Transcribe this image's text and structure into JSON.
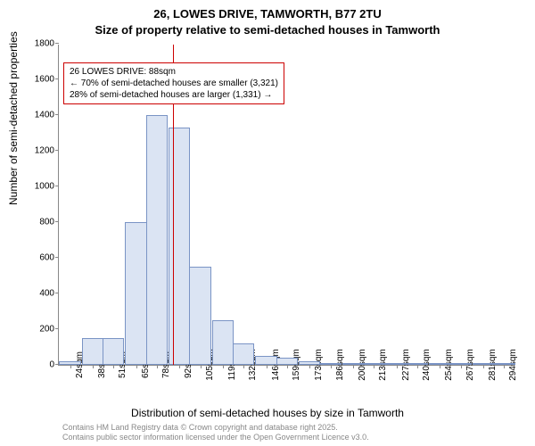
{
  "title_line1": "26, LOWES DRIVE, TAMWORTH, B77 2TU",
  "title_line2": "Size of property relative to semi-detached houses in Tamworth",
  "ylabel": "Number of semi-detached properties",
  "xlabel": "Distribution of semi-detached houses by size in Tamworth",
  "attribution_line1": "Contains HM Land Registry data © Crown copyright and database right 2025.",
  "attribution_line2": "Contains public sector information licensed under the Open Government Licence v3.0.",
  "infobox_line1": "26 LOWES DRIVE: 88sqm",
  "infobox_line2": "← 70% of semi-detached houses are smaller (3,321)",
  "infobox_line3": "28% of semi-detached houses are larger (1,331) →",
  "chart": {
    "type": "histogram",
    "bar_fill": "#dbe4f3",
    "bar_stroke": "#7a94c5",
    "refline_color": "#cc0000",
    "refline_x": 88,
    "infobox_border": "#cc0000",
    "background": "#ffffff",
    "axis_color": "#888888",
    "title_fontsize": 13,
    "label_fontsize": 12,
    "tick_fontsize": 10,
    "ylim": [
      0,
      1800
    ],
    "ytick_step": 200,
    "xlim": [
      17,
      301
    ],
    "xticks": [
      24,
      38,
      51,
      65,
      78,
      92,
      105,
      119,
      132,
      146,
      159,
      173,
      186,
      200,
      213,
      227,
      240,
      254,
      267,
      281,
      294
    ],
    "xtick_labels": [
      "24sqm",
      "38sqm",
      "51sqm",
      "65sqm",
      "78sqm",
      "92sqm",
      "105sqm",
      "119sqm",
      "132sqm",
      "146sqm",
      "159sqm",
      "173sqm",
      "186sqm",
      "200sqm",
      "213sqm",
      "227sqm",
      "240sqm",
      "254sqm",
      "267sqm",
      "281sqm",
      "294sqm"
    ],
    "bin_width": 13.5,
    "bars": [
      {
        "x": 24,
        "count": 20
      },
      {
        "x": 38,
        "count": 150
      },
      {
        "x": 51,
        "count": 150
      },
      {
        "x": 65,
        "count": 800
      },
      {
        "x": 78,
        "count": 1400
      },
      {
        "x": 92,
        "count": 1330
      },
      {
        "x": 105,
        "count": 550
      },
      {
        "x": 119,
        "count": 250
      },
      {
        "x": 132,
        "count": 120
      },
      {
        "x": 146,
        "count": 50
      },
      {
        "x": 159,
        "count": 40
      },
      {
        "x": 173,
        "count": 20
      },
      {
        "x": 186,
        "count": 3
      },
      {
        "x": 200,
        "count": 8
      },
      {
        "x": 213,
        "count": 5
      },
      {
        "x": 227,
        "count": 2
      },
      {
        "x": 240,
        "count": 10
      },
      {
        "x": 254,
        "count": 2
      },
      {
        "x": 267,
        "count": 2
      },
      {
        "x": 281,
        "count": 2
      },
      {
        "x": 294,
        "count": 2
      }
    ]
  }
}
